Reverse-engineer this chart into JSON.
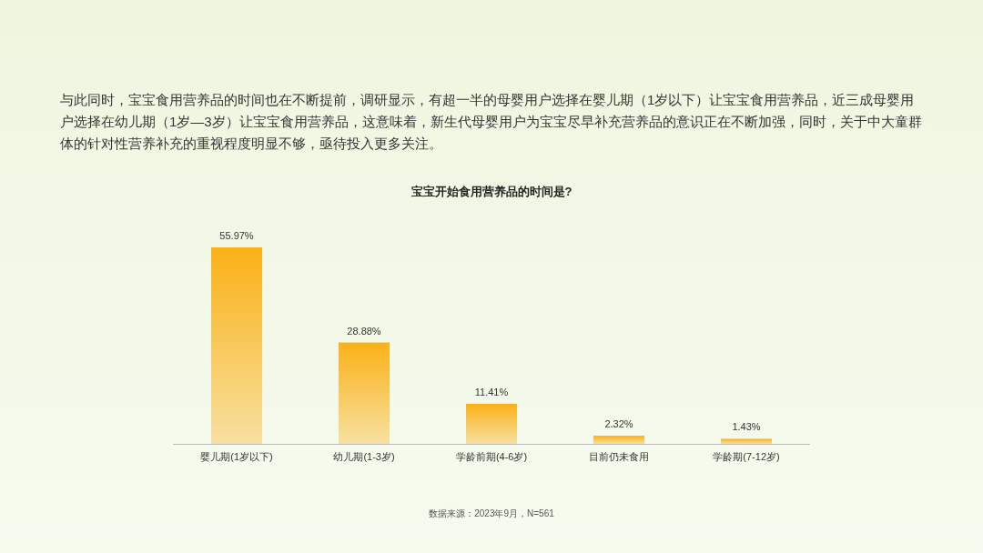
{
  "chart_data": {
    "type": "bar",
    "title": "宝宝开始食用营养品的时间是?",
    "categories": [
      "婴儿期(1岁以下)",
      "幼儿期(1-3岁)",
      "学龄前期(4-6岁)",
      "目前仍未食用",
      "学龄期(7-12岁)"
    ],
    "values": [
      55.97,
      28.88,
      11.41,
      2.32,
      1.43
    ],
    "value_labels": [
      "55.97%",
      "28.88%",
      "11.41%",
      "2.32%",
      "1.43%"
    ],
    "color": "#fbb117",
    "annotations": [
      "与此同时，宝宝食用营养品的时间也在不断提前，调研显示，有超一半的母婴用户选择在婴儿期（1岁以下）让宝宝食用营养品，近三成母婴用户选择在幼儿期（1岁—3岁）让宝宝食用营养品，这意味着，新生代母婴用户为宝宝尽早补充营养品的意识正在不断加强，同时，关于中大童群体的针对性营养补充的重视程度明显不够，亟待投入更多关注。",
      "数据来源：2023年9月，N=561"
    ]
  }
}
